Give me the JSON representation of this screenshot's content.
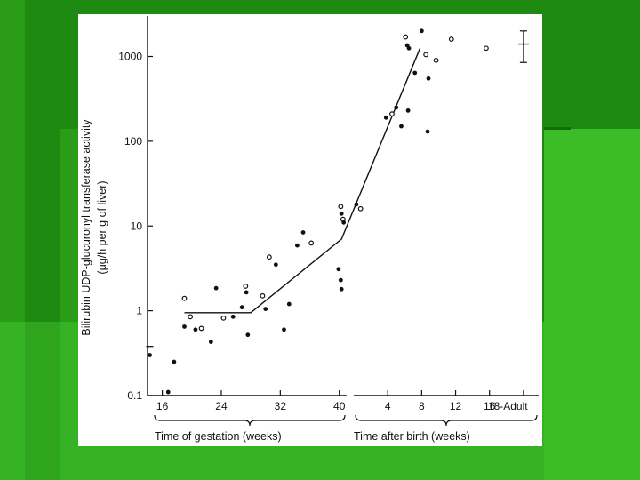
{
  "colors": {
    "slide_background": "#1f8a12",
    "band_light": "#3fbf2a",
    "band_dark": "#176b0c",
    "card": "#ffffff",
    "ink": "#111111"
  },
  "chart_data": {
    "type": "scatter",
    "title": "",
    "ylabel_line1": "Bilirubin UDP-glucuronyl transferase activity",
    "ylabel_line2": "(μg/h per g of liver)",
    "xlabel_gestation": "Time of gestation (weeks)",
    "xlabel_birth": "Time after birth (weeks)",
    "y_scale": "log",
    "ylim": [
      0.1,
      3000
    ],
    "y_ticks": [
      {
        "value": 0.1,
        "label": "0.1"
      },
      {
        "value": 1,
        "label": "1"
      },
      {
        "value": 10,
        "label": "10"
      },
      {
        "value": 100,
        "label": "100"
      },
      {
        "value": 1000,
        "label": "1000"
      }
    ],
    "gestation_axis": {
      "range_weeks": [
        14,
        41
      ],
      "ticks": [
        {
          "value": 16,
          "label": "16"
        },
        {
          "value": 24,
          "label": "24"
        },
        {
          "value": 32,
          "label": "32"
        },
        {
          "value": 40,
          "label": "40"
        }
      ]
    },
    "birth_axis": {
      "range_weeks": [
        0,
        22
      ],
      "ticks": [
        {
          "value": 4,
          "label": "4"
        },
        {
          "value": 8,
          "label": "8"
        },
        {
          "value": 12,
          "label": "12"
        },
        {
          "value": 16,
          "label": "16"
        },
        {
          "value": 20,
          "label": "18-Adult"
        }
      ]
    },
    "grid": false,
    "points": [
      {
        "period": "gestation",
        "x": 14.3,
        "y": 0.38,
        "marker": "dash"
      },
      {
        "period": "gestation",
        "x": 14.3,
        "y": 0.3,
        "marker": "filled"
      },
      {
        "period": "gestation",
        "x": 16.8,
        "y": 0.11,
        "marker": "filled"
      },
      {
        "period": "gestation",
        "x": 17.6,
        "y": 0.25,
        "marker": "filled"
      },
      {
        "period": "gestation",
        "x": 19.0,
        "y": 1.4,
        "marker": "open"
      },
      {
        "period": "gestation",
        "x": 19.0,
        "y": 0.65,
        "marker": "filled"
      },
      {
        "period": "gestation",
        "x": 19.8,
        "y": 0.85,
        "marker": "open"
      },
      {
        "period": "gestation",
        "x": 20.5,
        "y": 0.6,
        "marker": "filled"
      },
      {
        "period": "gestation",
        "x": 21.3,
        "y": 0.62,
        "marker": "open"
      },
      {
        "period": "gestation",
        "x": 22.6,
        "y": 0.43,
        "marker": "filled"
      },
      {
        "period": "gestation",
        "x": 23.3,
        "y": 1.85,
        "marker": "filled"
      },
      {
        "period": "gestation",
        "x": 24.3,
        "y": 0.82,
        "marker": "open"
      },
      {
        "period": "gestation",
        "x": 25.6,
        "y": 0.85,
        "marker": "filled"
      },
      {
        "period": "gestation",
        "x": 26.8,
        "y": 1.1,
        "marker": "filled"
      },
      {
        "period": "gestation",
        "x": 27.3,
        "y": 1.95,
        "marker": "open"
      },
      {
        "period": "gestation",
        "x": 27.4,
        "y": 1.65,
        "marker": "filled"
      },
      {
        "period": "gestation",
        "x": 27.6,
        "y": 0.52,
        "marker": "filled"
      },
      {
        "period": "gestation",
        "x": 29.6,
        "y": 1.5,
        "marker": "open"
      },
      {
        "period": "gestation",
        "x": 30.0,
        "y": 1.05,
        "marker": "filled"
      },
      {
        "period": "gestation",
        "x": 30.5,
        "y": 4.3,
        "marker": "open"
      },
      {
        "period": "gestation",
        "x": 31.4,
        "y": 3.5,
        "marker": "filled"
      },
      {
        "period": "gestation",
        "x": 32.5,
        "y": 0.6,
        "marker": "filled"
      },
      {
        "period": "gestation",
        "x": 33.2,
        "y": 1.2,
        "marker": "filled"
      },
      {
        "period": "gestation",
        "x": 34.3,
        "y": 5.9,
        "marker": "filled"
      },
      {
        "period": "gestation",
        "x": 35.1,
        "y": 8.4,
        "marker": "filled"
      },
      {
        "period": "gestation",
        "x": 36.2,
        "y": 6.3,
        "marker": "open"
      },
      {
        "period": "gestation",
        "x": 39.9,
        "y": 3.1,
        "marker": "filled"
      },
      {
        "period": "gestation",
        "x": 40.2,
        "y": 2.3,
        "marker": "filled"
      },
      {
        "period": "gestation",
        "x": 40.3,
        "y": 1.8,
        "marker": "filled"
      },
      {
        "period": "gestation",
        "x": 40.2,
        "y": 17,
        "marker": "open"
      },
      {
        "period": "gestation",
        "x": 40.3,
        "y": 14,
        "marker": "filled"
      },
      {
        "period": "gestation",
        "x": 40.5,
        "y": 12,
        "marker": "open"
      },
      {
        "period": "gestation",
        "x": 40.6,
        "y": 11,
        "marker": "filled"
      },
      {
        "period": "birth",
        "x": 0.3,
        "y": 18,
        "marker": "filled"
      },
      {
        "period": "birth",
        "x": 0.8,
        "y": 16,
        "marker": "open"
      },
      {
        "period": "birth",
        "x": 3.8,
        "y": 190,
        "marker": "filled"
      },
      {
        "period": "birth",
        "x": 4.5,
        "y": 210,
        "marker": "open"
      },
      {
        "period": "birth",
        "x": 5.0,
        "y": 250,
        "marker": "filled"
      },
      {
        "period": "birth",
        "x": 5.6,
        "y": 150,
        "marker": "filled"
      },
      {
        "period": "birth",
        "x": 6.4,
        "y": 230,
        "marker": "filled"
      },
      {
        "period": "birth",
        "x": 6.1,
        "y": 1700,
        "marker": "open"
      },
      {
        "period": "birth",
        "x": 6.3,
        "y": 1350,
        "marker": "filled"
      },
      {
        "period": "birth",
        "x": 6.5,
        "y": 1250,
        "marker": "filled"
      },
      {
        "period": "birth",
        "x": 7.2,
        "y": 640,
        "marker": "filled"
      },
      {
        "period": "birth",
        "x": 8.0,
        "y": 2000,
        "marker": "filled"
      },
      {
        "period": "birth",
        "x": 8.5,
        "y": 1050,
        "marker": "open"
      },
      {
        "period": "birth",
        "x": 8.8,
        "y": 550,
        "marker": "filled"
      },
      {
        "period": "birth",
        "x": 8.7,
        "y": 130,
        "marker": "filled"
      },
      {
        "period": "birth",
        "x": 9.7,
        "y": 900,
        "marker": "open"
      },
      {
        "period": "birth",
        "x": 11.5,
        "y": 1600,
        "marker": "open"
      },
      {
        "period": "birth",
        "x": 15.6,
        "y": 1250,
        "marker": "open"
      }
    ],
    "trend_line": [
      {
        "period": "gestation",
        "x": 19.0,
        "y": 0.95
      },
      {
        "period": "gestation",
        "x": 28.0,
        "y": 0.95
      },
      {
        "period": "gestation",
        "x": 40.3,
        "y": 7.0
      },
      {
        "period": "birth",
        "x": 7.8,
        "y": 1250
      }
    ],
    "adult_range": {
      "period": "birth",
      "x": 20,
      "mean": 1400,
      "low": 850,
      "high": 2000
    }
  }
}
